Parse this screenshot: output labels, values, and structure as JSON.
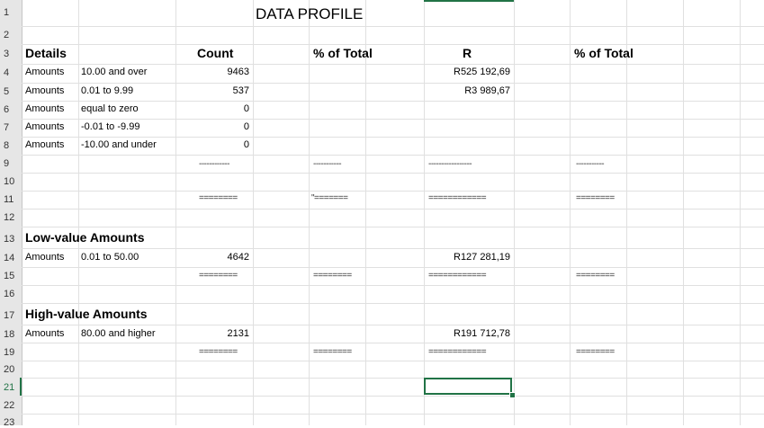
{
  "sheet": {
    "row_numbers": [
      "1",
      "2",
      "3",
      "4",
      "5",
      "6",
      "7",
      "8",
      "9",
      "10",
      "11",
      "12",
      "13",
      "14",
      "15",
      "16",
      "17",
      "18",
      "19",
      "20",
      "21",
      "22",
      "23"
    ],
    "title": "DATA PROFILE",
    "headers": {
      "details": "Details",
      "count": "Count",
      "pct1": "% of Total",
      "r": "R",
      "pct2": "% of Total"
    },
    "detail_rows": [
      {
        "label": "Amounts",
        "range": "10.00 and over",
        "count": "9463",
        "r": "R525 192,69"
      },
      {
        "label": "Amounts",
        "range": "0.01 to 9.99",
        "count": "537",
        "r": "R3 989,67"
      },
      {
        "label": "Amounts",
        "range": "equal to zero",
        "count": "0",
        "r": ""
      },
      {
        "label": "Amounts",
        "range": "-0.01 to -9.99",
        "count": "0",
        "r": ""
      },
      {
        "label": "Amounts",
        "range": "-10.00 and under",
        "count": "0",
        "r": ""
      }
    ],
    "row9": {
      "count": "------------",
      "pct1": "-----------",
      "r": "-----------------",
      "pct2": "-----------"
    },
    "row11": {
      "count": "========",
      "pct1": "\"=======",
      "r": "============",
      "pct2": "========"
    },
    "low": {
      "heading": "Low-value Amounts",
      "label": "Amounts",
      "range": "0.01 to 50.00",
      "count": "4642",
      "r": "R127 281,19",
      "sep_count": "========",
      "sep_pct1": "========",
      "sep_r": "============",
      "sep_pct2": "========"
    },
    "high": {
      "heading": "High-value Amounts",
      "label": "Amounts",
      "range": "80.00 and higher",
      "count": "2131",
      "r": "R191 712,78",
      "sep_count": "========",
      "sep_pct1": "========",
      "sep_r": "============",
      "sep_pct2": "========"
    },
    "colors": {
      "accent": "#217346",
      "grid": "#e0e0e0",
      "header_bg": "#e6e6e6"
    }
  }
}
